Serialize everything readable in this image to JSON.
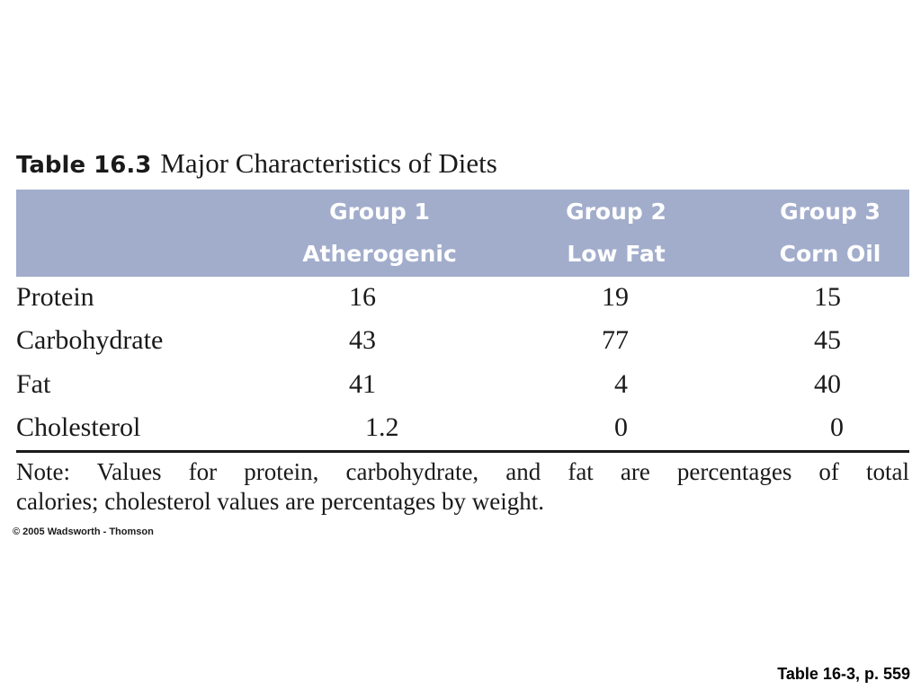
{
  "caption": {
    "number": "Table 16.3",
    "title": "Major Characteristics of Diets"
  },
  "columns": [
    {
      "group": "Group 1",
      "diet": "Atherogenic"
    },
    {
      "group": "Group 2",
      "diet": "Low Fat"
    },
    {
      "group": "Group 3",
      "diet": "Corn Oil"
    }
  ],
  "rows": [
    {
      "label": "Protein",
      "values": [
        "16",
        "19",
        "15"
      ]
    },
    {
      "label": "Carbohydrate",
      "values": [
        "43",
        "77",
        "45"
      ]
    },
    {
      "label": "Fat",
      "values": [
        "41",
        "4",
        "40"
      ]
    },
    {
      "label": "Cholesterol",
      "values": [
        "1.2",
        "0",
        "0"
      ]
    }
  ],
  "note": {
    "line1": "Note: Values for protein, carbohydrate, and fat are percentages of total",
    "line2": "calories; cholesterol values are percentages by weight."
  },
  "copyright": "© 2005 Wadsworth - Thomson",
  "source_ref": "Table 16-3, p. 559",
  "colors": {
    "header_background": "#a2adcc",
    "header_text": "#ffffff"
  }
}
